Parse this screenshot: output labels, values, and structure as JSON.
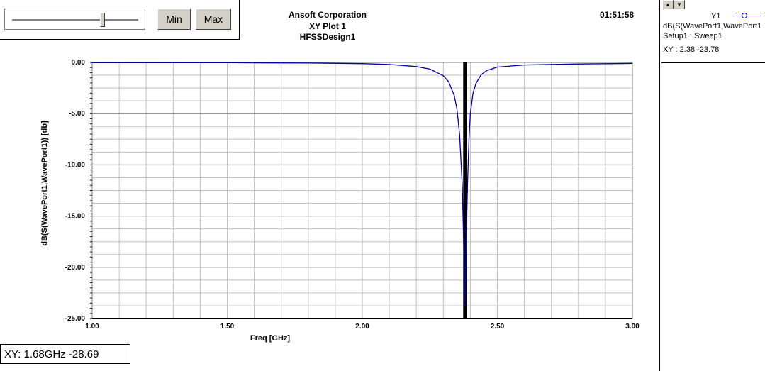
{
  "controls": {
    "min_label": "Min",
    "max_label": "Max",
    "slider_fraction": 0.74
  },
  "header": {
    "company": "Ansoft Corporation",
    "plot_title": "XY Plot 1",
    "design": "HFSSDesign1",
    "time": "01:51:58"
  },
  "legend": {
    "trace_name": "Y1",
    "expression": "dB(S(WavePort1,WavePort1",
    "setup": "Setup1 : Sweep1",
    "marker_text": "XY : 2.38 -23.78",
    "up_icon": "up-arrow-icon",
    "down_icon": "down-arrow-icon"
  },
  "readout": {
    "text": "XY: 1.68GHz -28.69"
  },
  "colors": {
    "trace": "#0000a0",
    "grid": "#c0c0c0",
    "marker_line": "#000000"
  },
  "chart_data": {
    "type": "line",
    "title": "XY Plot 1",
    "xlabel": "Freq [GHz]",
    "ylabel": "dB(S(WavePort1,WavePort1)) [db]",
    "xlim": [
      1.0,
      3.0
    ],
    "ylim": [
      -25.0,
      0.0
    ],
    "xticks": [
      1.0,
      1.5,
      2.0,
      2.5,
      3.0
    ],
    "xtick_labels": [
      "1.00",
      "1.50",
      "2.00",
      "2.50",
      "3.00"
    ],
    "yticks": [
      0.0,
      -5.0,
      -10.0,
      -15.0,
      -20.0,
      -25.0
    ],
    "ytick_labels": [
      "0.00",
      "-5.00",
      "-10.00",
      "-15.00",
      "-20.00",
      "-25.00"
    ],
    "grid": true,
    "marker_x": 2.38,
    "series": [
      {
        "name": "dB(S(WavePort1,WavePort1",
        "x": [
          1.0,
          1.5,
          1.8,
          2.0,
          2.1,
          2.2,
          2.25,
          2.3,
          2.32,
          2.34,
          2.35,
          2.36,
          2.37,
          2.375,
          2.38,
          2.385,
          2.39,
          2.395,
          2.4,
          2.41,
          2.42,
          2.44,
          2.46,
          2.5,
          2.6,
          2.8,
          3.0
        ],
        "y": [
          -0.02,
          -0.03,
          -0.06,
          -0.12,
          -0.2,
          -0.4,
          -0.65,
          -1.3,
          -1.9,
          -3.2,
          -4.5,
          -7.0,
          -12.0,
          -17.5,
          -23.78,
          -17.0,
          -11.5,
          -7.5,
          -5.0,
          -3.0,
          -2.1,
          -1.2,
          -0.8,
          -0.45,
          -0.25,
          -0.15,
          -0.1
        ]
      }
    ]
  }
}
